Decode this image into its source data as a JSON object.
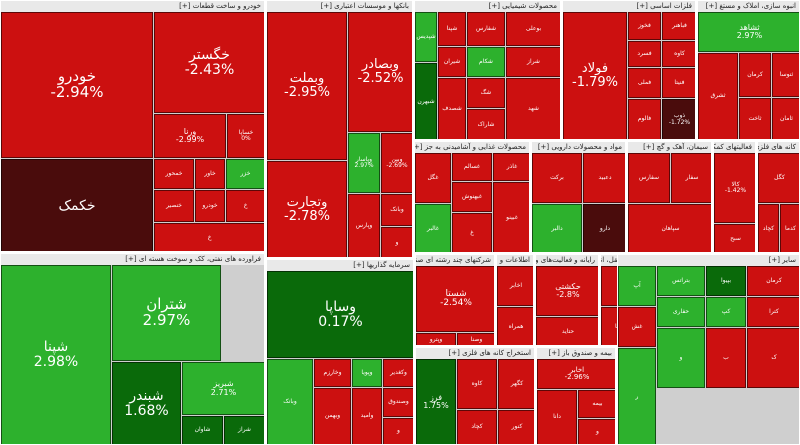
{
  "colors": {
    "strong_red": "#b30000",
    "red": "#cc1010",
    "light_red": "#e23030",
    "dark_maroon": "#4a0c0c",
    "green": "#2db12d",
    "dark_green": "#0a6a0a",
    "mid_green": "#1f8f1f",
    "header_bg": "#e9e9e9"
  },
  "sectors": [
    {
      "id": "auto",
      "title": "خودرو و ساخت قطعات [+]",
      "tiles": [
        {
          "symbol": "خودرو",
          "change": "-2.94%"
        },
        {
          "symbol": "خگستر",
          "change": "-2.43%"
        },
        {
          "symbol": "ورنا",
          "change": "-2.99%"
        },
        {
          "symbol": "خساپا",
          "change": "0%"
        },
        {
          "symbol": "خکمک",
          "change": ""
        },
        {
          "symbol": "خمحور",
          "change": ""
        },
        {
          "symbol": "خاور",
          "change": ""
        },
        {
          "symbol": "خزر",
          "change": ""
        },
        {
          "symbol": "خنصیر",
          "change": ""
        },
        {
          "symbol": "خودرو",
          "change": ""
        },
        {
          "symbol": "خ",
          "change": ""
        },
        {
          "symbol": "خ",
          "change": ""
        }
      ]
    },
    {
      "id": "banks",
      "title": "بانکها و موسسات اعتباری [+]",
      "tiles": [
        {
          "symbol": "وبملت",
          "change": "-2.95%"
        },
        {
          "symbol": "وبصادر",
          "change": "-2.52%"
        },
        {
          "symbol": "وتجارت",
          "change": "-2.78%"
        },
        {
          "symbol": "وپاسار",
          "change": "2.97%"
        },
        {
          "symbol": "وبین",
          "change": "-2.69%"
        },
        {
          "symbol": "وپارس",
          "change": ""
        },
        {
          "symbol": "وبانک",
          "change": ""
        },
        {
          "symbol": "و",
          "change": ""
        }
      ]
    },
    {
      "id": "chem",
      "title": "محصولات شیمیایی [+]",
      "tiles": [
        {
          "symbol": "شپدیس",
          "change": ""
        },
        {
          "symbol": "شپنا",
          "change": ""
        },
        {
          "symbol": "شفارس",
          "change": ""
        },
        {
          "symbol": "بوعلی",
          "change": ""
        },
        {
          "symbol": "شیران",
          "change": ""
        },
        {
          "symbol": "شکام",
          "change": ""
        },
        {
          "symbol": "شراز",
          "change": ""
        },
        {
          "symbol": "شگ",
          "change": ""
        },
        {
          "symbol": "شبهرن",
          "change": ""
        },
        {
          "symbol": "شصدف",
          "change": ""
        },
        {
          "symbol": "شهد",
          "change": ""
        },
        {
          "symbol": "شاراک",
          "change": ""
        }
      ]
    },
    {
      "id": "metals",
      "title": "فلزات اساسی [+]",
      "tiles": [
        {
          "symbol": "فولاد",
          "change": "-1.79%"
        },
        {
          "symbol": "فخوز",
          "change": ""
        },
        {
          "symbol": "فباهنر",
          "change": ""
        },
        {
          "symbol": "کاوه",
          "change": ""
        },
        {
          "symbol": "فسرد",
          "change": ""
        },
        {
          "symbol": "فملی",
          "change": ""
        },
        {
          "symbol": "فنیتا",
          "change": ""
        },
        {
          "symbol": "فالوم",
          "change": ""
        },
        {
          "symbol": "ذوب",
          "change": "-1.72%"
        }
      ]
    },
    {
      "id": "realestate",
      "title": "انبوه سازی، املاک و مستغ [+]",
      "tiles": [
        {
          "symbol": "ثشاهد",
          "change": "2.97%"
        },
        {
          "symbol": "ثشرق",
          "change": ""
        },
        {
          "symbol": "کرمان",
          "change": ""
        },
        {
          "symbol": "ثنوسا",
          "change": ""
        },
        {
          "symbol": "ثاخت",
          "change": ""
        },
        {
          "symbol": "ثامان",
          "change": ""
        }
      ]
    },
    {
      "id": "minerals",
      "title": "کانه های فلزی [+]",
      "tiles": [
        {
          "symbol": "کگل",
          "change": ""
        },
        {
          "symbol": "کچاد",
          "change": ""
        },
        {
          "symbol": "کدما",
          "change": ""
        }
      ]
    },
    {
      "id": "food",
      "title": "محصولات غذایی و آشامیدنی به جز [+]",
      "tiles": [
        {
          "symbol": "غگل",
          "change": ""
        },
        {
          "symbol": "غسالم",
          "change": ""
        },
        {
          "symbol": "غاذر",
          "change": ""
        },
        {
          "symbol": "غبهنوش",
          "change": ""
        },
        {
          "symbol": "غالبر",
          "change": ""
        },
        {
          "symbol": "غبینو",
          "change": ""
        },
        {
          "symbol": "غ",
          "change": ""
        }
      ]
    },
    {
      "id": "pharma",
      "title": "مواد و محصولات دارویی [+]",
      "tiles": [
        {
          "symbol": "برکت",
          "change": ""
        },
        {
          "symbol": "دعبید",
          "change": ""
        },
        {
          "symbol": "دالبر",
          "change": ""
        },
        {
          "symbol": "دارو",
          "change": ""
        }
      ]
    },
    {
      "id": "cement",
      "title": "سیمان، آهک و گچ [+]",
      "tiles": [
        {
          "symbol": "سفارس",
          "change": ""
        },
        {
          "symbol": "سفار",
          "change": ""
        },
        {
          "symbol": "سپاهان",
          "change": ""
        }
      ]
    },
    {
      "id": "finance",
      "title": "فعالیتهای کمکی به [+]",
      "tiles": [
        {
          "symbol": "کالا",
          "change": "-1.42%"
        },
        {
          "symbol": "سبح",
          "change": ""
        }
      ]
    },
    {
      "id": "oilprod",
      "title": "فراورده های نفتی، کک و سوخت هسته ای [+]",
      "tiles": [
        {
          "symbol": "شپنا",
          "change": "2.98%"
        },
        {
          "symbol": "شتران",
          "change": "2.97%"
        },
        {
          "symbol": "شبندر",
          "change": "1.68%"
        },
        {
          "symbol": "شبریز",
          "change": "2.71%"
        },
        {
          "symbol": "شاوان",
          "change": ""
        },
        {
          "symbol": "شراز",
          "change": ""
        }
      ]
    },
    {
      "id": "investment",
      "title": "سرمایه گذاریها [+]",
      "tiles": [
        {
          "symbol": "وساپا",
          "change": "0.17%"
        },
        {
          "symbol": "وبانک",
          "change": ""
        },
        {
          "symbol": "وخارزم",
          "change": ""
        },
        {
          "symbol": "وپویا",
          "change": ""
        },
        {
          "symbol": "وکغدیر",
          "change": ""
        },
        {
          "symbol": "وبهمن",
          "change": ""
        },
        {
          "symbol": "وامید",
          "change": ""
        },
        {
          "symbol": "وصندوق",
          "change": ""
        },
        {
          "symbol": "و",
          "change": ""
        },
        {
          "symbol": "و",
          "change": ""
        }
      ]
    },
    {
      "id": "multi",
      "title": "شرکتهای چند رشته ای صنعتی [+]",
      "tiles": [
        {
          "symbol": "شستا",
          "change": "-2.54%"
        },
        {
          "symbol": "وپترو",
          "change": ""
        },
        {
          "symbol": "وصنا",
          "change": ""
        }
      ]
    },
    {
      "id": "telecom",
      "title": "اطلاعات و ارتباطات [+]",
      "tiles": [
        {
          "symbol": "اخابر",
          "change": ""
        },
        {
          "symbol": "همراه",
          "change": ""
        }
      ]
    },
    {
      "id": "software",
      "title": "رایانه و فعالیت‌های وابسته [+]",
      "tiles": [
        {
          "symbol": "حکشتی",
          "change": "-2.8%"
        },
        {
          "symbol": "حتاید",
          "change": ""
        }
      ]
    },
    {
      "id": "mining",
      "title": "استخراج کانه های فلزی [+]",
      "tiles": [
        {
          "symbol": "فرز",
          "change": "1.75%"
        },
        {
          "symbol": "کاوه",
          "change": ""
        },
        {
          "symbol": "کگهر",
          "change": ""
        },
        {
          "symbol": "کچاد",
          "change": ""
        },
        {
          "symbol": "کنور",
          "change": ""
        },
        {
          "symbol": "کگل",
          "change": ""
        }
      ]
    },
    {
      "id": "insurance",
      "title": "بیمه و صندوق باز [+]",
      "tiles": [
        {
          "symbol": "اخابر",
          "change": "-2.96%"
        },
        {
          "symbol": "دانا",
          "change": ""
        },
        {
          "symbol": "بیمه",
          "change": ""
        },
        {
          "symbol": "و",
          "change": ""
        }
      ]
    },
    {
      "id": "transport",
      "title": "حمل و نقل، انبارداری [+]",
      "tiles": [
        {
          "symbol": "حتاید",
          "change": ""
        },
        {
          "symbol": "حپارسا",
          "change": ""
        }
      ]
    },
    {
      "id": "misc",
      "title": "سایر [+]",
      "tiles": [
        {
          "symbol": "آپ",
          "change": ""
        },
        {
          "symbol": "بتراتس",
          "change": ""
        },
        {
          "symbol": "بپیوا",
          "change": ""
        },
        {
          "symbol": "کرمان",
          "change": ""
        },
        {
          "symbol": "حفاری",
          "change": ""
        },
        {
          "symbol": "کپ",
          "change": ""
        },
        {
          "symbol": "کترا",
          "change": ""
        },
        {
          "symbol": "غش",
          "change": ""
        },
        {
          "symbol": "و",
          "change": ""
        },
        {
          "symbol": "ب",
          "change": ""
        },
        {
          "symbol": "ک",
          "change": ""
        },
        {
          "symbol": "ر",
          "change": ""
        }
      ]
    }
  ]
}
